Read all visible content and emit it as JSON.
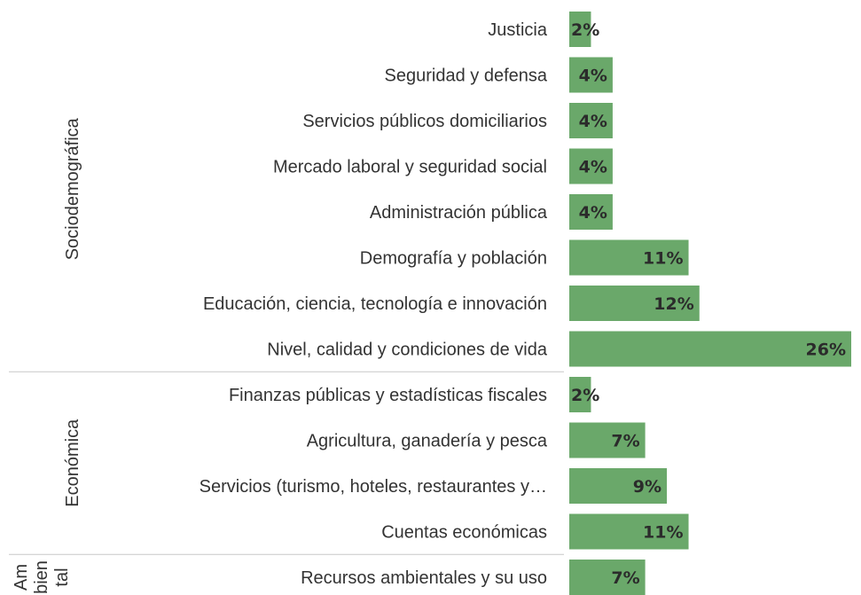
{
  "chart_data": {
    "type": "bar",
    "orientation": "horizontal",
    "bar_color": "#6aa86a",
    "value_suffix": "%",
    "xlim": [
      0,
      26
    ],
    "groups": [
      {
        "name": "Sociodemográfica",
        "categories": [
          {
            "label": "Justicia",
            "value": 2,
            "value_label": "2%"
          },
          {
            "label": "Seguridad y defensa",
            "value": 4,
            "value_label": "4%"
          },
          {
            "label": "Servicios públicos domiciliarios",
            "value": 4,
            "value_label": "4%"
          },
          {
            "label": "Mercado laboral y seguridad social",
            "value": 4,
            "value_label": "4%"
          },
          {
            "label": "Administración pública",
            "value": 4,
            "value_label": "4%"
          },
          {
            "label": "Demografía y población",
            "value": 11,
            "value_label": "11%"
          },
          {
            "label": "Educación, ciencia, tecnología e innovación",
            "value": 12,
            "value_label": "12%"
          },
          {
            "label": "Nivel, calidad y condiciones de vida",
            "value": 26,
            "value_label": "26%"
          }
        ]
      },
      {
        "name": "Económica",
        "categories": [
          {
            "label": "Finanzas públicas y estadísticas fiscales",
            "value": 2,
            "value_label": "2%"
          },
          {
            "label": "Agricultura, ganadería y pesca",
            "value": 7,
            "value_label": "7%"
          },
          {
            "label": "Servicios (turismo, hoteles, restaurantes y…",
            "value": 9,
            "value_label": "9%"
          },
          {
            "label": "Cuentas económicas",
            "value": 11,
            "value_label": "11%"
          }
        ]
      },
      {
        "name": "Am bien tal",
        "name_lines": [
          "Am",
          "bien",
          "tal"
        ],
        "categories": [
          {
            "label": "Recursos ambientales y su uso",
            "value": 7,
            "value_label": "7%"
          }
        ]
      }
    ]
  }
}
